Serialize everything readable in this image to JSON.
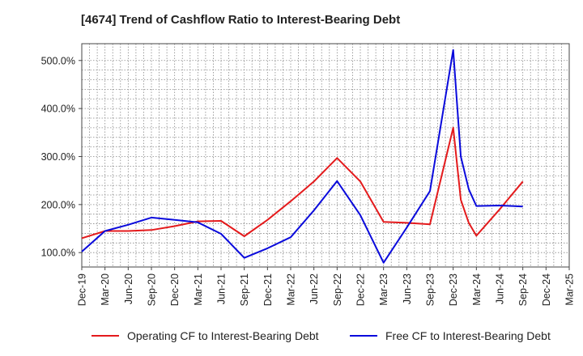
{
  "chart_data": {
    "type": "line",
    "title": "[4674]  Trend of Cashflow Ratio to Interest-Bearing Debt",
    "xlabel": "",
    "ylabel": "",
    "categories": [
      "Dec-19",
      "Mar-20",
      "Jun-20",
      "Sep-20",
      "Dec-20",
      "Mar-21",
      "Jun-21",
      "Sep-21",
      "Dec-21",
      "Mar-22",
      "Jun-22",
      "Sep-22",
      "Dec-22",
      "Mar-23",
      "Jun-23",
      "Sep-23",
      "Dec-23",
      "Mar-24",
      "Jun-24",
      "Sep-24",
      "Dec-24",
      "Mar-25"
    ],
    "ylim": [
      70,
      535
    ],
    "yticks": [
      100,
      200,
      300,
      400,
      500
    ],
    "ytick_labels": [
      "100.0%",
      "200.0%",
      "300.0%",
      "400.0%",
      "500.0%"
    ],
    "grid": true,
    "legend_position": "bottom",
    "series": [
      {
        "name": "Operating CF to Interest-Bearing Debt",
        "color": "#e41a1c",
        "points": [
          {
            "x": 0,
            "y": 130
          },
          {
            "x": 1,
            "y": 145
          },
          {
            "x": 2,
            "y": 145
          },
          {
            "x": 3,
            "y": 147
          },
          {
            "x": 4,
            "y": 155
          },
          {
            "x": 5,
            "y": 165
          },
          {
            "x": 6,
            "y": 166
          },
          {
            "x": 7,
            "y": 134
          },
          {
            "x": 8,
            "y": 168
          },
          {
            "x": 9,
            "y": 207
          },
          {
            "x": 10,
            "y": 248
          },
          {
            "x": 11,
            "y": 297
          },
          {
            "x": 12,
            "y": 248
          },
          {
            "x": 13,
            "y": 164
          },
          {
            "x": 14,
            "y": 162
          },
          {
            "x": 15,
            "y": 159
          },
          {
            "x": 16,
            "y": 360
          },
          {
            "x": 16.33,
            "y": 210
          },
          {
            "x": 16.67,
            "y": 162
          },
          {
            "x": 17,
            "y": 135
          },
          {
            "x": 18,
            "y": 190
          },
          {
            "x": 19,
            "y": 248
          }
        ]
      },
      {
        "name": "Free CF to Interest-Bearing Debt",
        "color": "#0a0adc",
        "points": [
          {
            "x": 0,
            "y": 102
          },
          {
            "x": 1,
            "y": 145
          },
          {
            "x": 2,
            "y": 158
          },
          {
            "x": 3,
            "y": 173
          },
          {
            "x": 4,
            "y": 168
          },
          {
            "x": 5,
            "y": 163
          },
          {
            "x": 6,
            "y": 139
          },
          {
            "x": 7,
            "y": 89
          },
          {
            "x": 8,
            "y": 109
          },
          {
            "x": 9,
            "y": 132
          },
          {
            "x": 10,
            "y": 188
          },
          {
            "x": 11,
            "y": 249
          },
          {
            "x": 12,
            "y": 178
          },
          {
            "x": 13,
            "y": 79
          },
          {
            "x": 14,
            "y": 152
          },
          {
            "x": 15,
            "y": 228
          },
          {
            "x": 16,
            "y": 522
          },
          {
            "x": 16.33,
            "y": 300
          },
          {
            "x": 16.67,
            "y": 232
          },
          {
            "x": 17,
            "y": 197
          },
          {
            "x": 18,
            "y": 198
          },
          {
            "x": 19,
            "y": 196
          }
        ]
      }
    ]
  }
}
